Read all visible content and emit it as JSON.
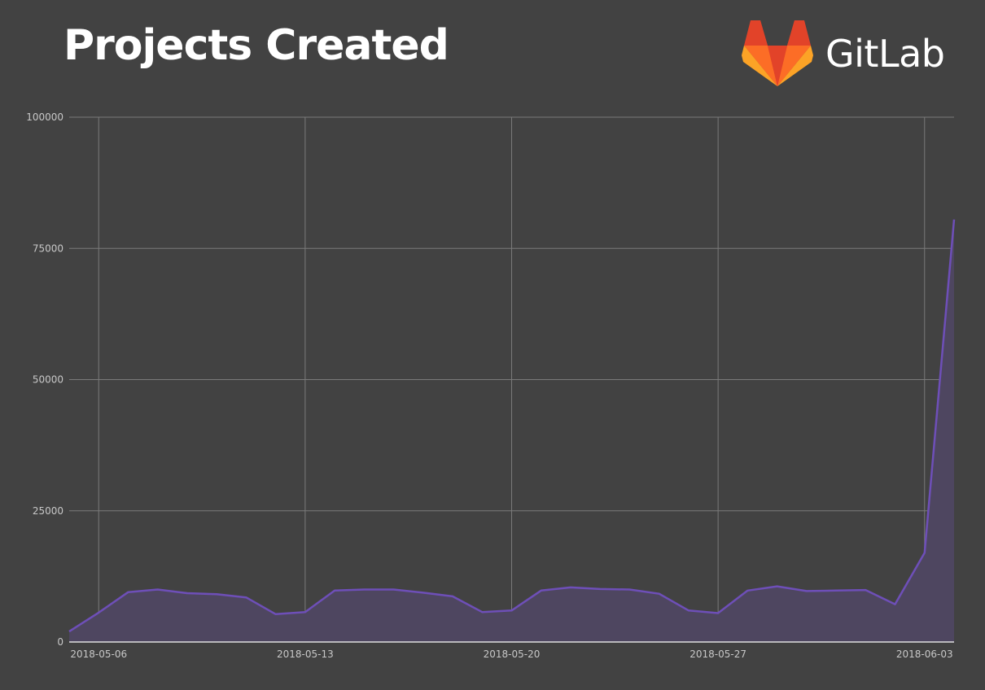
{
  "header": {
    "title": "Projects Created",
    "logo_text": "GitLab",
    "logo_icon": "gitlab-tanuki-icon"
  },
  "colors": {
    "background": "#424242",
    "series_line": "#6e4fb8",
    "series_fill": "#4e4660",
    "gridline": "#7a7a7a",
    "axis": "#e0e0e0",
    "logo_red": "#e24329",
    "logo_orange": "#fc6d26",
    "logo_yellow": "#fca326"
  },
  "chart_data": {
    "type": "area",
    "title": "Projects Created",
    "xlabel": "",
    "ylabel": "",
    "ylim": [
      0,
      100000
    ],
    "yticks": [
      0,
      25000,
      50000,
      75000,
      100000
    ],
    "ytick_labels": [
      "0",
      "25000",
      "50000",
      "75000",
      "100000"
    ],
    "xtick_labels": [
      "2018-05-06",
      "2018-05-13",
      "2018-05-20",
      "2018-05-27",
      "2018-06-03"
    ],
    "grid": true,
    "legend": "none",
    "x": [
      "2018-05-05",
      "2018-05-06",
      "2018-05-07",
      "2018-05-08",
      "2018-05-09",
      "2018-05-10",
      "2018-05-11",
      "2018-05-12",
      "2018-05-13",
      "2018-05-14",
      "2018-05-15",
      "2018-05-16",
      "2018-05-17",
      "2018-05-18",
      "2018-05-19",
      "2018-05-20",
      "2018-05-21",
      "2018-05-22",
      "2018-05-23",
      "2018-05-24",
      "2018-05-25",
      "2018-05-26",
      "2018-05-27",
      "2018-05-28",
      "2018-05-29",
      "2018-05-30",
      "2018-05-31",
      "2018-06-01",
      "2018-06-02",
      "2018-06-03",
      "2018-06-04"
    ],
    "series": [
      {
        "name": "Projects Created",
        "values": [
          2000,
          5600,
          9500,
          10000,
          9300,
          9100,
          8500,
          5300,
          5700,
          9800,
          10000,
          10000,
          9400,
          8700,
          5700,
          6000,
          9800,
          10400,
          10100,
          10000,
          9200,
          6000,
          5500,
          9800,
          10600,
          9700,
          9800,
          9900,
          7200,
          17000,
          80500
        ]
      }
    ]
  }
}
